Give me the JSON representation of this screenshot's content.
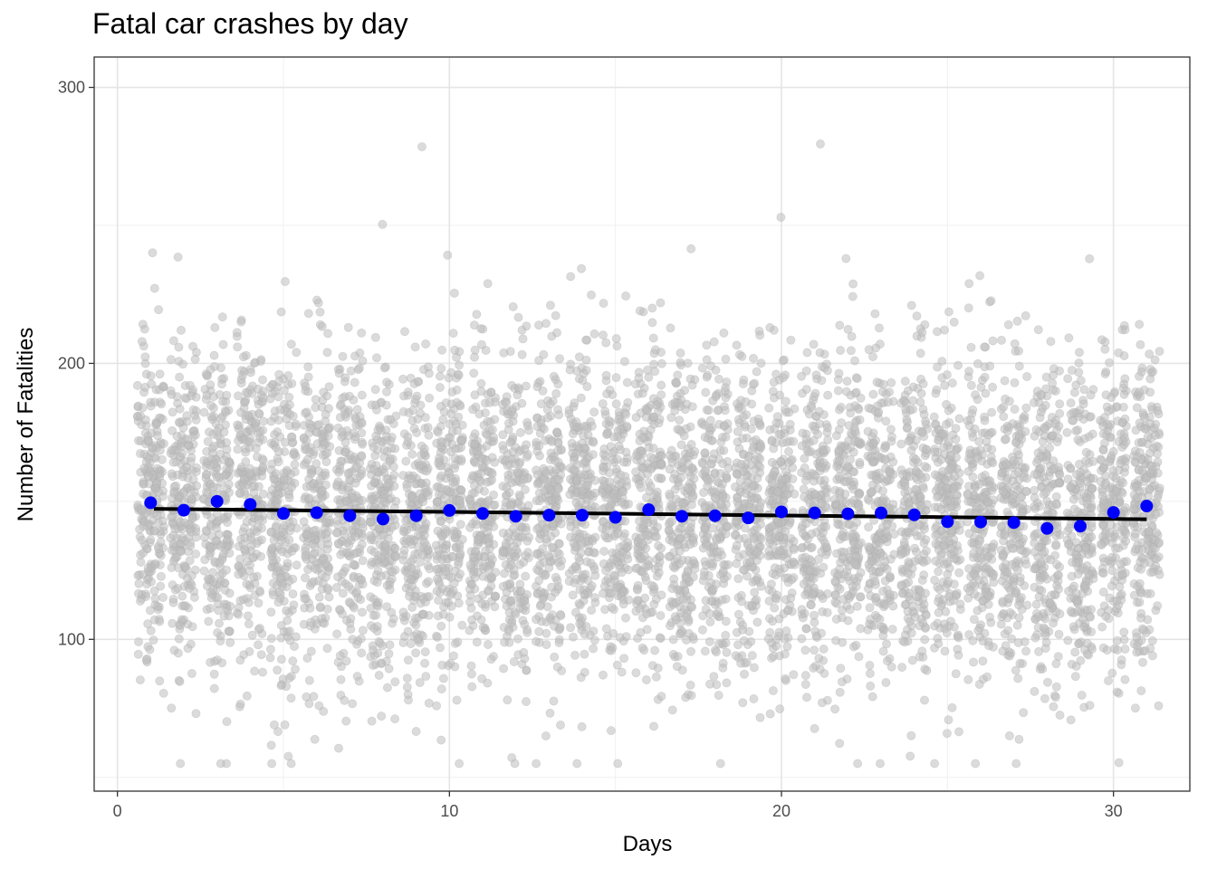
{
  "chart_data": {
    "type": "scatter",
    "title": "Fatal car crashes by day",
    "xlabel": "Days",
    "ylabel": "Number of Fatalities",
    "xlim": [
      -0.7,
      32.3
    ],
    "ylim": [
      45,
      311
    ],
    "x_ticks": [
      0,
      10,
      20,
      30
    ],
    "y_ticks": [
      100,
      200,
      300
    ],
    "grid": true,
    "legend": "none",
    "colors": {
      "raw": "#bdbdbd",
      "mean": "#0000ff",
      "trend": "#000000"
    },
    "raw_distribution": {
      "description_days": [
        1,
        31
      ],
      "typical_range": [
        90,
        230
      ],
      "core_range": [
        105,
        190
      ]
    },
    "series": [
      {
        "name": "",
        "kind": "daily-mean",
        "x": [
          1,
          2,
          3,
          4,
          5,
          6,
          7,
          8,
          9,
          10,
          11,
          12,
          13,
          14,
          15,
          16,
          17,
          18,
          19,
          20,
          21,
          22,
          23,
          24,
          25,
          26,
          27,
          28,
          29,
          30,
          31
        ],
        "y": [
          149.5,
          146.8,
          150.0,
          148.9,
          145.6,
          145.9,
          144.8,
          143.6,
          144.8,
          146.7,
          145.6,
          144.6,
          145.0,
          145.0,
          144.2,
          147.0,
          144.6,
          144.8,
          144.0,
          146.2,
          145.8,
          145.5,
          145.8,
          145.1,
          142.6,
          142.5,
          142.3,
          140.2,
          141.0,
          146.0,
          148.3
        ]
      },
      {
        "name": "",
        "kind": "linear-fit",
        "x": [
          1.1,
          31.0
        ],
        "y": [
          147.3,
          143.5
        ]
      }
    ]
  }
}
